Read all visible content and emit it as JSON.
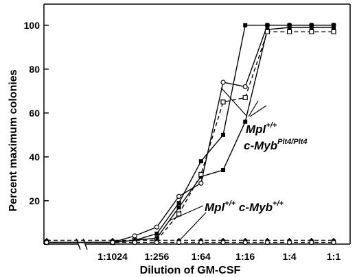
{
  "chart_data": {
    "type": "line",
    "title": "",
    "xlabel": "Dilution of GM-CSF",
    "ylabel": "Percent maximum colonies",
    "ylim": [
      0,
      105
    ],
    "yticks": [
      20,
      40,
      60,
      80,
      100
    ],
    "x_axis_scale": "log2",
    "x_axis_break": true,
    "xticks": [
      {
        "label": "1:1024",
        "x": -10
      },
      {
        "label": "1:256",
        "x": -8
      },
      {
        "label": "1:64",
        "x": -6
      },
      {
        "label": "1:16",
        "x": -4
      },
      {
        "label": "1:4",
        "x": -2
      },
      {
        "label": "1:1",
        "x": 0
      }
    ],
    "grid": false,
    "legend": "none",
    "series": [
      {
        "genotype": "Mpl+/+ c-MybPlt4/Plt4",
        "marker": "open-circle",
        "dash": "solid",
        "points": [
          [
            -14.3,
            1
          ],
          [
            -10,
            1
          ],
          [
            -9,
            4
          ],
          [
            -8,
            8
          ],
          [
            -7,
            22
          ],
          [
            -6,
            28
          ],
          [
            -5,
            74
          ],
          [
            -4,
            72
          ],
          [
            -3,
            100
          ],
          [
            -2,
            100
          ],
          [
            -1,
            100
          ],
          [
            0,
            100
          ]
        ]
      },
      {
        "genotype": "Mpl+/+ c-MybPlt4/Plt4",
        "marker": "filled-square",
        "dash": "solid",
        "points": [
          [
            -14.3,
            1
          ],
          [
            -10,
            1
          ],
          [
            -9,
            2
          ],
          [
            -8,
            5
          ],
          [
            -7,
            19
          ],
          [
            -6,
            38
          ],
          [
            -5,
            50
          ],
          [
            -4,
            100
          ],
          [
            -3,
            100
          ],
          [
            -2,
            100
          ],
          [
            -1,
            100
          ],
          [
            0,
            100
          ]
        ]
      },
      {
        "genotype": "Mpl+/+ c-MybPlt4/Plt4",
        "marker": "filled-square",
        "dash": "solid",
        "points": [
          [
            -14.3,
            1
          ],
          [
            -10,
            1
          ],
          [
            -9,
            2
          ],
          [
            -8,
            3
          ],
          [
            -7,
            17
          ],
          [
            -6,
            31
          ],
          [
            -5,
            34
          ],
          [
            -4,
            56
          ],
          [
            -3,
            98
          ],
          [
            -2,
            99
          ],
          [
            -1,
            99
          ],
          [
            0,
            99
          ]
        ]
      },
      {
        "genotype": "Mpl+/+ c-MybPlt4/Plt4",
        "marker": "open-square",
        "dash": "dashed",
        "points": [
          [
            -14.3,
            1
          ],
          [
            -10,
            1
          ],
          [
            -9,
            2
          ],
          [
            -8,
            2
          ],
          [
            -7,
            14
          ],
          [
            -6,
            32
          ],
          [
            -5,
            65
          ],
          [
            -4,
            67
          ],
          [
            -3,
            97
          ],
          [
            -2,
            97
          ],
          [
            -1,
            97
          ],
          [
            0,
            97
          ]
        ]
      },
      {
        "genotype": "Mpl+/+ c-Myb+/+",
        "marker": "filled-diamond",
        "dash": "dashed",
        "points": [
          [
            -14.3,
            2
          ],
          [
            -10,
            2
          ],
          [
            -9,
            2
          ],
          [
            -8,
            2
          ],
          [
            -7,
            2
          ],
          [
            -6,
            2
          ],
          [
            -5,
            2
          ],
          [
            -4,
            2
          ],
          [
            -3,
            2
          ],
          [
            -2,
            2
          ],
          [
            -1,
            2
          ],
          [
            0,
            2
          ]
        ]
      },
      {
        "genotype": "Mpl+/+ c-Myb+/+",
        "marker": "open-circle",
        "dash": "dashed",
        "points": [
          [
            -14.3,
            1
          ],
          [
            -10,
            1
          ],
          [
            -9,
            1
          ],
          [
            -8,
            1
          ],
          [
            -7,
            1
          ],
          [
            -6,
            1
          ],
          [
            -5,
            1
          ],
          [
            -4,
            1
          ],
          [
            -3,
            1
          ],
          [
            -2,
            1
          ],
          [
            -1,
            1
          ],
          [
            0,
            1
          ]
        ]
      }
    ],
    "annotations": [
      {
        "id": "plt4",
        "line1": "Mpl",
        "line1_sup": "+/+",
        "line2": "c-Myb",
        "line2_sup": "Plt4/Plt4"
      },
      {
        "id": "wt",
        "line1": "Mpl",
        "line1_sup": "+/+",
        "line2": " c-Myb",
        "line2_sup": "+/+"
      }
    ]
  }
}
